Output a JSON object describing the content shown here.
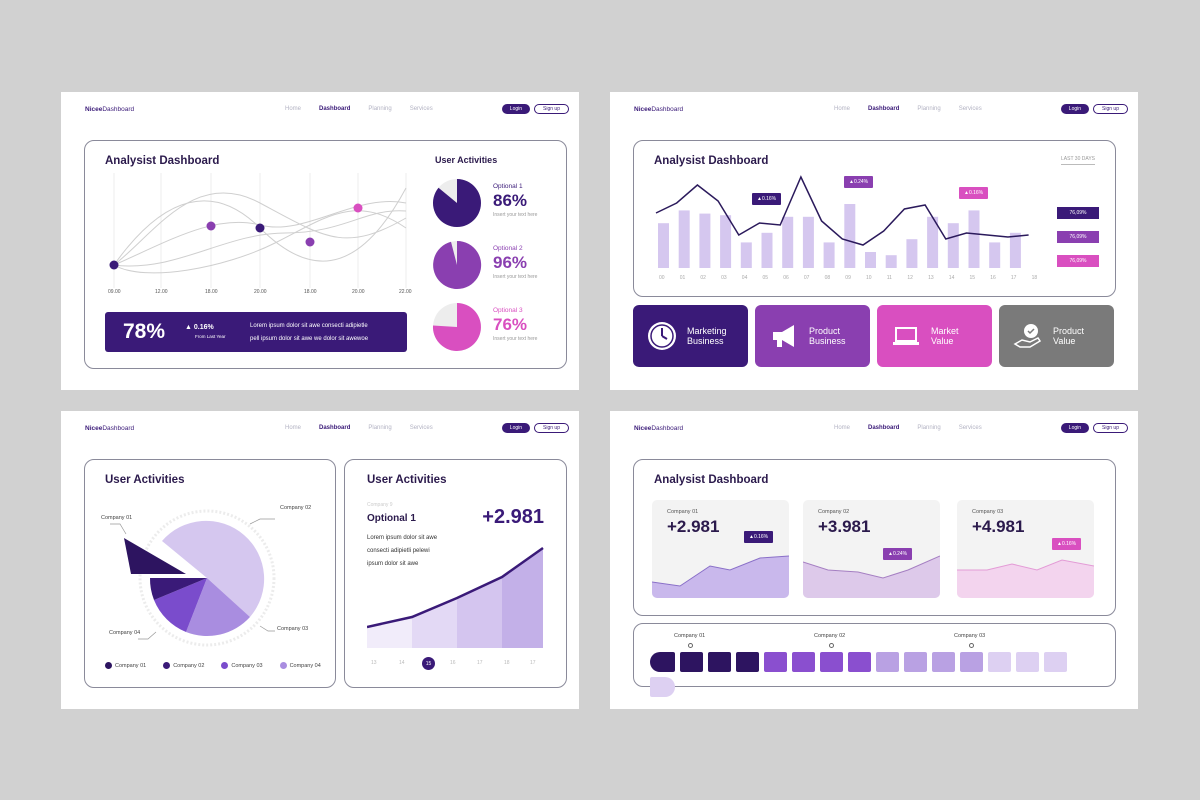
{
  "nav": {
    "brand_bold": "Nicee",
    "brand_rest": "Dashboard",
    "items": [
      "Home",
      "Dashboard",
      "Planning",
      "Services"
    ],
    "active": "Dashboard",
    "login": "Login",
    "signup": "Sign up"
  },
  "slide1": {
    "title": "Analysist Dashboard",
    "x_ticks": [
      "09.00",
      "12.00",
      "18.00",
      "20.00",
      "18.00",
      "20.00",
      "22.00"
    ],
    "summary": {
      "value": "78%",
      "change": "0.16%",
      "change_label": "From Last Year",
      "text_line1": "Lorem ipsum dolor sit awe consecti adipietle",
      "text_line2": "pell ipsum dolor sit awe we dolor sit awewoe"
    },
    "activities_title": "User Activities",
    "activities": [
      {
        "label": "Optional 1",
        "value": "86%",
        "sub": "Insert your text here",
        "percent": 86,
        "color": "#3a1a78"
      },
      {
        "label": "Optional 2",
        "value": "96%",
        "sub": "Insert your text here",
        "percent": 96,
        "color": "#8a3fb0"
      },
      {
        "label": "Optional 3",
        "value": "76%",
        "sub": "Insert your text here",
        "percent": 76,
        "color": "#d94fc0"
      }
    ]
  },
  "slide2": {
    "title": "Analysist Dashboard",
    "period": "LAST 30 DAYS",
    "x_ticks": [
      "00",
      "01",
      "02",
      "03",
      "04",
      "05",
      "06",
      "07",
      "08",
      "09",
      "10",
      "11",
      "12",
      "13",
      "14",
      "15",
      "16",
      "17",
      "18"
    ],
    "badges": [
      "0.16%",
      "0.24%",
      "0.16%"
    ],
    "side_values": [
      "76,09%",
      "76,09%",
      "76,09%"
    ],
    "tiles": [
      {
        "label1": "Marketing",
        "label2": "Business",
        "color": "#3a1a78",
        "icon": "clock-icon"
      },
      {
        "label1": "Product",
        "label2": "Business",
        "color": "#8a3fb0",
        "icon": "megaphone-icon"
      },
      {
        "label1": "Market",
        "label2": "Value",
        "color": "#d94fc0",
        "icon": "laptop-icon"
      },
      {
        "label1": "Product",
        "label2": "Value",
        "color": "#7a7a7a",
        "icon": "hand-badge-icon"
      }
    ]
  },
  "slide3": {
    "left_title": "User Activities",
    "pie_labels": [
      "Company 01",
      "Company 02",
      "Company 03",
      "Company 04"
    ],
    "legend": [
      {
        "label": "Company 01",
        "color": "#2d1460"
      },
      {
        "label": "Company 02",
        "color": "#3a1a78"
      },
      {
        "label": "Company 03",
        "color": "#7a4ccc"
      },
      {
        "label": "Company 04",
        "color": "#a98de0"
      }
    ],
    "right_title": "User Activities",
    "company_small": "Company 9",
    "option": "Optional 1",
    "value": "+2.981",
    "text": [
      "Lorem ipsum dolor sit awe",
      "consecti adipietli pelewi",
      "ipsum dolor sit awe"
    ],
    "days": [
      "13",
      "14",
      "15",
      "16",
      "17",
      "18",
      "17"
    ],
    "selected_day": "15"
  },
  "slide4": {
    "title": "Analysist Dashboard",
    "cards": [
      {
        "label": "Company 01",
        "value": "+2.981",
        "badge": "0.16%",
        "color": "#3a1a78"
      },
      {
        "label": "Company 02",
        "value": "+3.981",
        "badge": "0.24%",
        "color": "#8a3fb0"
      },
      {
        "label": "Company 03",
        "value": "+4.981",
        "badge": "0.16%",
        "color": "#d94fc0"
      }
    ],
    "timeline_labels": [
      "Company 01",
      "Company 02",
      "Company 03"
    ]
  }
}
